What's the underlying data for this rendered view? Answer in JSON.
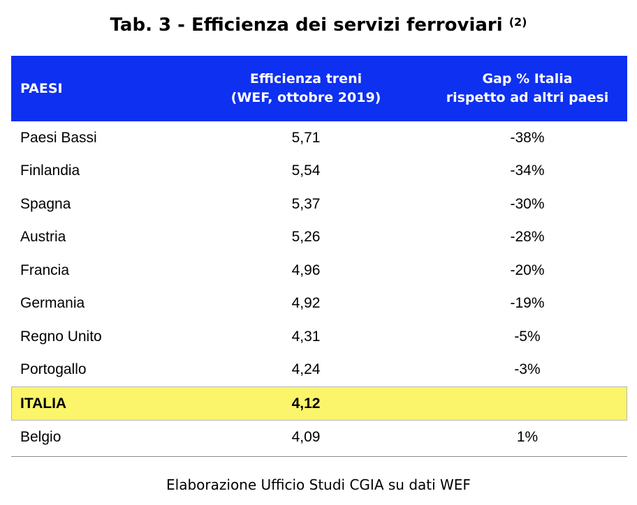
{
  "title": {
    "text": "Tab. 3 - Efficienza dei servizi ferroviari",
    "note": "(2)"
  },
  "table": {
    "header": {
      "col1": "PAESI",
      "col2_line1": "Efficienza treni",
      "col2_line2": "(WEF, ottobre 2019)",
      "col3_line1": "Gap % Italia",
      "col3_line2": "rispetto ad altri paesi"
    },
    "rows": [
      {
        "country": "Paesi Bassi",
        "efficiency": "5,71",
        "gap": "-38%"
      },
      {
        "country": "Finlandia",
        "efficiency": "5,54",
        "gap": "-34%"
      },
      {
        "country": "Spagna",
        "efficiency": "5,37",
        "gap": "-30%"
      },
      {
        "country": "Austria",
        "efficiency": "5,26",
        "gap": "-28%"
      },
      {
        "country": "Francia",
        "efficiency": "4,96",
        "gap": "-20%"
      },
      {
        "country": "Germania",
        "efficiency": "4,92",
        "gap": "-19%"
      },
      {
        "country": "Regno Unito",
        "efficiency": "4,31",
        "gap": "-5%"
      },
      {
        "country": "Portogallo",
        "efficiency": "4,24",
        "gap": "-3%"
      },
      {
        "country": "ITALIA",
        "efficiency": "4,12",
        "gap": ""
      },
      {
        "country": "Belgio",
        "efficiency": "4,09",
        "gap": "1%"
      }
    ],
    "colors": {
      "header_bg": "#0e30f0",
      "header_text": "#ffffff",
      "highlight_bg": "#faf56a"
    }
  },
  "footer": "Elaborazione Ufficio Studi CGIA su dati WEF"
}
